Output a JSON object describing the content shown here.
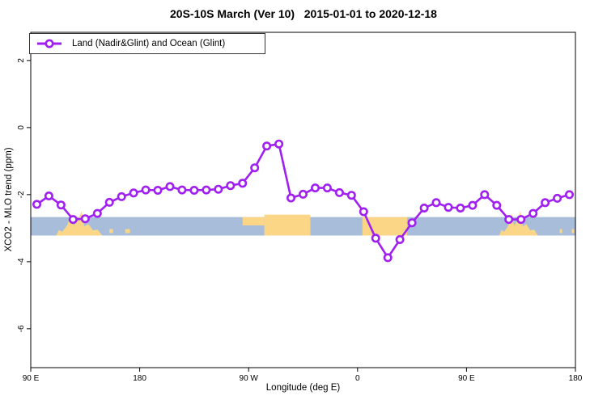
{
  "title": "20S-10S March (Ver 10)   2015-01-01 to 2020-12-18",
  "legend": {
    "label": "Land (Nadir&Glint) and Ocean (Glint)"
  },
  "colors": {
    "line": "#A020F0",
    "marker_fill": "#FFFFFF",
    "ocean": "#A8BDDA",
    "land": "#FBD687",
    "axis": "#000000"
  },
  "chart_data": {
    "type": "line",
    "title": "20S-10S March (Ver 10)  2015-01-01 to 2020-12-18",
    "xlabel": "Longitude (deg E)",
    "ylabel": "XCO2 - MLO trend (ppm)",
    "xlim": [
      90,
      540
    ],
    "ylim": [
      -7.16,
      2.84
    ],
    "grid": false,
    "legend_position": "top-left",
    "x_ticks": [
      {
        "value": 90,
        "label": "90 E"
      },
      {
        "value": 180,
        "label": "180"
      },
      {
        "value": 270,
        "label": "90 W"
      },
      {
        "value": 360,
        "label": "0"
      },
      {
        "value": 450,
        "label": "90 E"
      },
      {
        "value": 540,
        "label": "180"
      }
    ],
    "y_ticks": [
      {
        "value": 2,
        "label": "2"
      },
      {
        "value": 0,
        "label": "0"
      },
      {
        "value": -2,
        "label": "-2"
      },
      {
        "value": -4,
        "label": "-4"
      },
      {
        "value": -6,
        "label": "-6"
      }
    ],
    "series": [
      {
        "name": "Land (Nadir&Glint) and Ocean (Glint)",
        "x": [
          95,
          105,
          115,
          125,
          135,
          145,
          155,
          165,
          175,
          185,
          195,
          205,
          215,
          225,
          235,
          245,
          255,
          265,
          275,
          285,
          295,
          305,
          315,
          325,
          335,
          345,
          355,
          365,
          375,
          385,
          395,
          405,
          415,
          425,
          435,
          445,
          455,
          465,
          475,
          485,
          495,
          505,
          515,
          525,
          535
        ],
        "y": [
          -2.29,
          -2.04,
          -2.31,
          -2.74,
          -2.72,
          -2.56,
          -2.23,
          -2.06,
          -1.95,
          -1.86,
          -1.87,
          -1.76,
          -1.86,
          -1.87,
          -1.86,
          -1.84,
          -1.73,
          -1.66,
          -1.2,
          -0.55,
          -0.49,
          -2.1,
          -1.99,
          -1.8,
          -1.8,
          -1.94,
          -2.02,
          -2.51,
          -3.3,
          -3.88,
          -3.34,
          -2.84,
          -2.4,
          -2.24,
          -2.38,
          -2.4,
          -2.32,
          -2.0,
          -2.32,
          -2.74,
          -2.74,
          -2.56,
          -2.24,
          -2.11,
          -2.0
        ]
      }
    ],
    "map_band": {
      "description": "land/ocean strip for 20S-10S latitude band",
      "y_range": [
        -3.22,
        -2.67
      ],
      "land_patches": [
        {
          "from": 111,
          "to": 149,
          "shape": "mountain"
        },
        {
          "from": 155,
          "to": 158,
          "shape": "speck"
        },
        {
          "from": 168,
          "to": 172,
          "shape": "speck"
        },
        {
          "from": 265,
          "to": 283,
          "shape": "shallow"
        },
        {
          "from": 283,
          "to": 321,
          "shape": "block",
          "raise": 3
        },
        {
          "from": 364,
          "to": 401,
          "shape": "block",
          "raise": 0
        },
        {
          "from": 477,
          "to": 509,
          "shape": "mountain"
        },
        {
          "from": 527,
          "to": 529,
          "shape": "speck"
        },
        {
          "from": 537,
          "to": 539,
          "shape": "speck"
        }
      ]
    }
  }
}
